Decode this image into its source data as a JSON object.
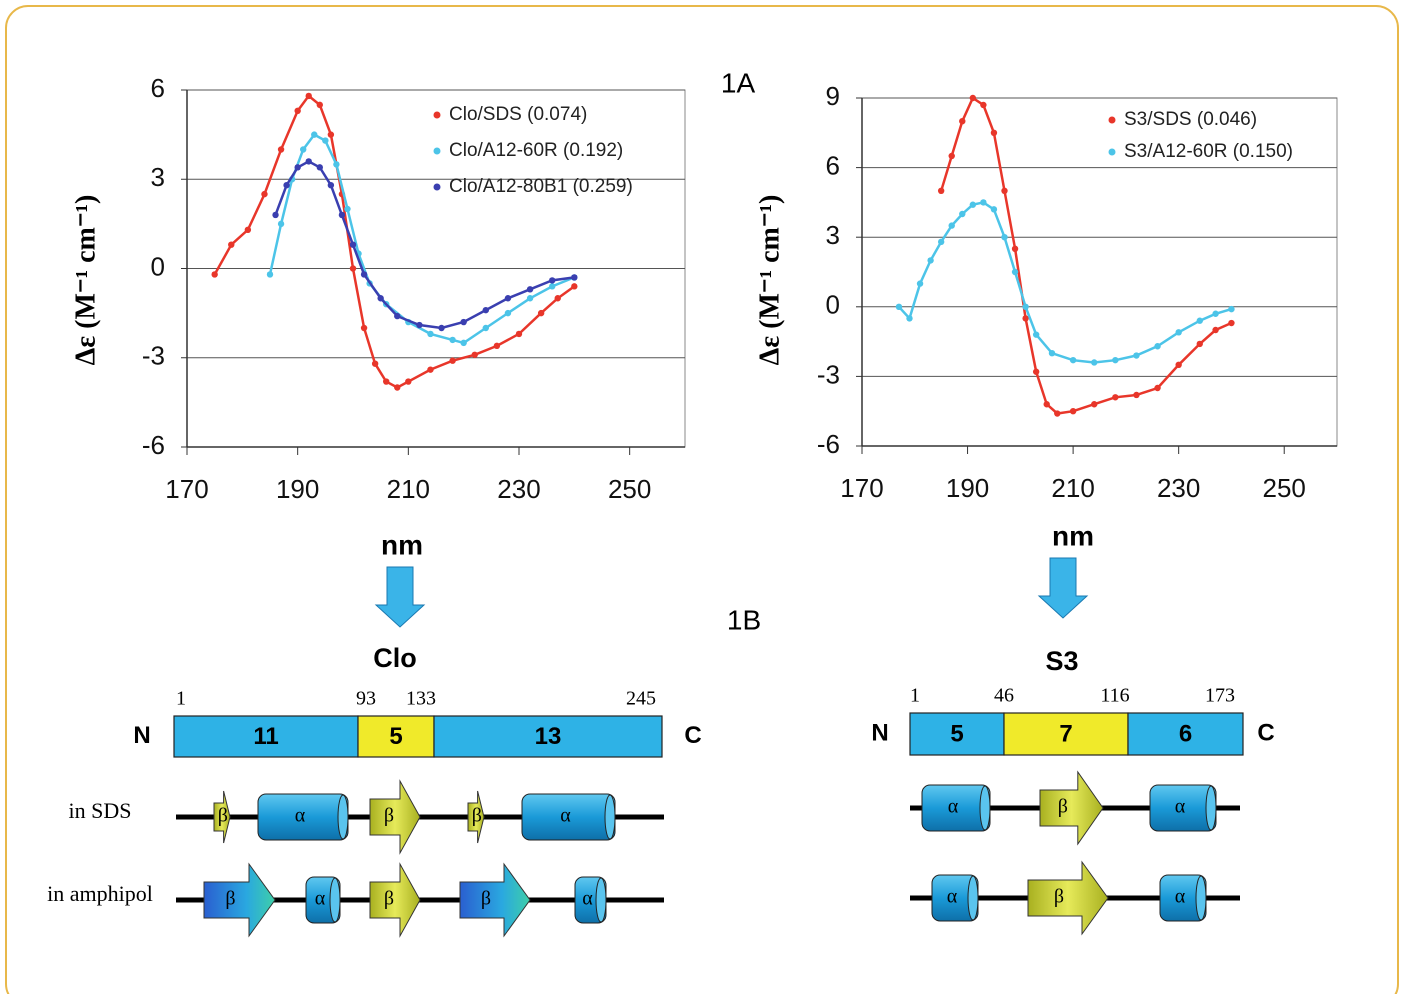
{
  "chart_data": [
    {
      "type": "line",
      "annotation": "1A",
      "x_label": "nm",
      "y_label": "Δε (M⁻¹ cm⁻¹)",
      "xlim": [
        170,
        260
      ],
      "xticks": [
        170,
        190,
        210,
        230,
        250
      ],
      "ylim": [
        -6,
        6
      ],
      "yticks": [
        -6,
        -3,
        0,
        3,
        6
      ],
      "grid": true,
      "legend": "upper right",
      "series": [
        {
          "name": "Clo/SDS (0.074)",
          "color": "#e8362a",
          "x": [
            175,
            178,
            181,
            184,
            187,
            190,
            192,
            194,
            196,
            198,
            200,
            202,
            204,
            206,
            208,
            210,
            214,
            218,
            222,
            226,
            230,
            234,
            237,
            240
          ],
          "values": [
            -0.2,
            0.8,
            1.3,
            2.5,
            4,
            5.3,
            5.8,
            5.5,
            4.5,
            2.5,
            0,
            -2,
            -3.2,
            -3.8,
            -4,
            -3.8,
            -3.4,
            -3.1,
            -2.9,
            -2.6,
            -2.2,
            -1.5,
            -1,
            -0.6
          ]
        },
        {
          "name": "Clo/A12-60R (0.192)",
          "color": "#4cc4e8",
          "x": [
            185,
            187,
            189,
            191,
            193,
            195,
            197,
            199,
            201,
            203,
            206,
            210,
            214,
            218,
            220,
            224,
            228,
            232,
            236,
            240
          ],
          "values": [
            -0.2,
            1.5,
            3,
            4,
            4.5,
            4.3,
            3.5,
            2,
            0.5,
            -0.5,
            -1.2,
            -1.8,
            -2.2,
            -2.4,
            -2.5,
            -2,
            -1.5,
            -1,
            -0.6,
            -0.3
          ]
        },
        {
          "name": "Clo/A12-80B1 (0.259)",
          "color": "#3a3fb0",
          "x": [
            186,
            188,
            190,
            192,
            194,
            196,
            198,
            200,
            202,
            205,
            208,
            212,
            216,
            220,
            224,
            228,
            232,
            236,
            240
          ],
          "values": [
            1.8,
            2.8,
            3.4,
            3.6,
            3.4,
            2.8,
            1.8,
            0.8,
            -0.2,
            -1,
            -1.6,
            -1.9,
            -2,
            -1.8,
            -1.4,
            -1,
            -0.7,
            -0.4,
            -0.3
          ]
        }
      ]
    },
    {
      "type": "line",
      "x_label": "nm",
      "y_label": "Δε (M⁻¹ cm⁻¹)",
      "xlim": [
        170,
        260
      ],
      "xticks": [
        170,
        190,
        210,
        230,
        250
      ],
      "ylim": [
        -6,
        9
      ],
      "yticks": [
        -6,
        -3,
        0,
        3,
        6,
        9
      ],
      "grid": true,
      "legend": "upper right",
      "series": [
        {
          "name": "S3/SDS (0.046)",
          "color": "#e8362a",
          "x": [
            185,
            187,
            189,
            191,
            193,
            195,
            197,
            199,
            201,
            203,
            205,
            207,
            210,
            214,
            218,
            222,
            226,
            230,
            234,
            237,
            240
          ],
          "values": [
            5,
            6.5,
            8,
            9,
            8.7,
            7.5,
            5,
            2.5,
            -0.5,
            -2.8,
            -4.2,
            -4.6,
            -4.5,
            -4.2,
            -3.9,
            -3.8,
            -3.5,
            -2.5,
            -1.6,
            -1,
            -0.7
          ]
        },
        {
          "name": "S3/A12-60R (0.150)",
          "color": "#4cc4e8",
          "x": [
            177,
            179,
            181,
            183,
            185,
            187,
            189,
            191,
            193,
            195,
            197,
            199,
            201,
            203,
            206,
            210,
            214,
            218,
            222,
            226,
            230,
            234,
            237,
            240
          ],
          "values": [
            0,
            -0.5,
            1,
            2,
            2.8,
            3.5,
            4,
            4.4,
            4.5,
            4.2,
            3,
            1.5,
            0,
            -1.2,
            -2,
            -2.3,
            -2.4,
            -2.3,
            -2.1,
            -1.7,
            -1.1,
            -0.6,
            -0.3,
            -0.1
          ]
        }
      ]
    }
  ],
  "panel_b": "1B",
  "diagrams": [
    {
      "title": "Clo",
      "n_label": "N",
      "c_label": "C",
      "positions": [
        "1",
        "93",
        "133",
        "245"
      ],
      "segments": [
        {
          "label": "11",
          "color": "#2eb2e6"
        },
        {
          "label": "5",
          "color": "#f0ea2a"
        },
        {
          "label": "13",
          "color": "#2eb2e6"
        }
      ],
      "rows": [
        {
          "label": "in SDS",
          "elements": [
            "β",
            "α",
            "β",
            "β",
            "α"
          ]
        },
        {
          "label": "in amphipol",
          "elements": [
            "β",
            "α",
            "β",
            "β",
            "α"
          ]
        }
      ]
    },
    {
      "title": "S3",
      "n_label": "N",
      "c_label": "C",
      "positions": [
        "1",
        "46",
        "116",
        "173"
      ],
      "segments": [
        {
          "label": "5",
          "color": "#2eb2e6"
        },
        {
          "label": "7",
          "color": "#f0ea2a"
        },
        {
          "label": "6",
          "color": "#2eb2e6"
        }
      ],
      "rows": [
        {
          "elements": [
            "α",
            "β",
            "α"
          ]
        },
        {
          "elements": [
            "α",
            "β",
            "α"
          ]
        }
      ]
    }
  ]
}
